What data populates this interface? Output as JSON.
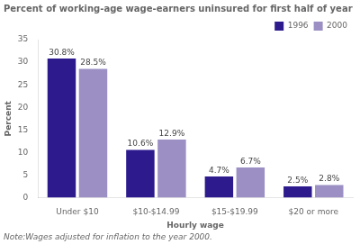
{
  "chart_data": {
    "type": "bar",
    "title": "Percent of working-age wage-earners uninsured for first half of year",
    "categories": [
      "Under $10",
      "$10-$14.99",
      "$15-$19.99",
      "$20 or more"
    ],
    "series": [
      {
        "name": "1996",
        "color": "#2d1b8e",
        "values": [
          30.8,
          10.6,
          4.7,
          2.5
        ],
        "value_labels": [
          "30.8%",
          "10.6%",
          "4.7%",
          "2.5%"
        ]
      },
      {
        "name": "2000",
        "color": "#9b8fc4",
        "values": [
          28.5,
          12.9,
          6.7,
          2.8
        ],
        "value_labels": [
          "28.5%",
          "12.9%",
          "6.7%",
          "2.8%"
        ]
      }
    ],
    "xlabel": "Hourly wage",
    "ylabel": "Percent",
    "ylim": [
      0,
      35
    ],
    "yticks": [
      0,
      5,
      10,
      15,
      20,
      25,
      30,
      35
    ],
    "grid": false,
    "legend": "upper right",
    "data_labels": true,
    "annotations": [
      "Note:Wages adjusted for inflation to the year 2000."
    ]
  }
}
